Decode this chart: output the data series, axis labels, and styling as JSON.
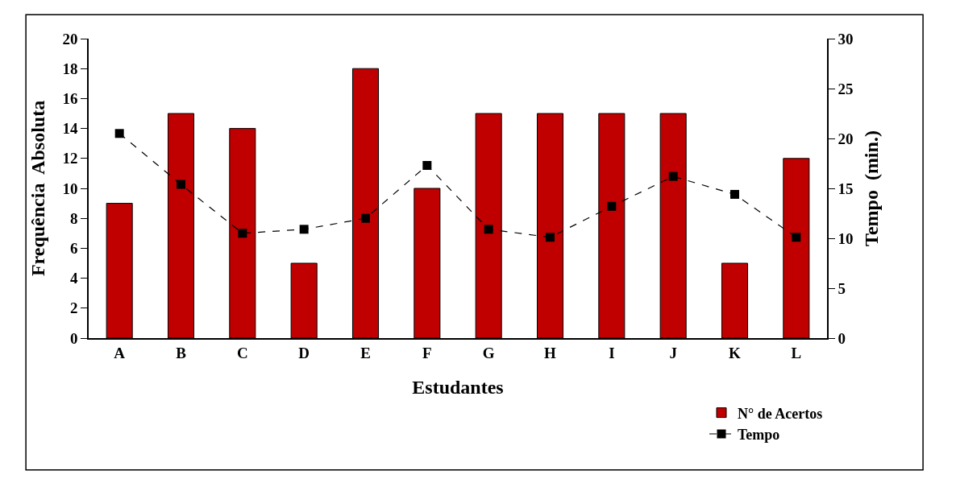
{
  "chart_data": {
    "type": "bar",
    "categories": [
      "A",
      "B",
      "C",
      "D",
      "E",
      "F",
      "G",
      "H",
      "I",
      "J",
      "K",
      "L"
    ],
    "xlabel": "Estudantes",
    "ylabel": "Frequência  Absoluta",
    "y2label": "Tempo  (min.)",
    "series": [
      {
        "name": "N° de Acertos",
        "color": "#c00000",
        "values": [
          9,
          15,
          14,
          5,
          18,
          10,
          15,
          15,
          15,
          15,
          5,
          12
        ]
      },
      {
        "name": "Tempo",
        "type": "line",
        "axis": "y2",
        "color": "#000000",
        "marker": "square",
        "line_style": "dashed",
        "values": [
          20.5,
          15.4,
          10.5,
          10.9,
          12.0,
          17.3,
          10.9,
          10.1,
          13.2,
          16.2,
          14.4,
          10.1
        ]
      }
    ],
    "ylim": [
      0,
      20
    ],
    "yticks": [
      0,
      2,
      4,
      6,
      8,
      10,
      12,
      14,
      16,
      18,
      20
    ],
    "y2lim": [
      0,
      30
    ],
    "y2ticks": [
      0,
      5,
      10,
      15,
      20,
      25,
      30
    ],
    "legend": "bottom right"
  }
}
